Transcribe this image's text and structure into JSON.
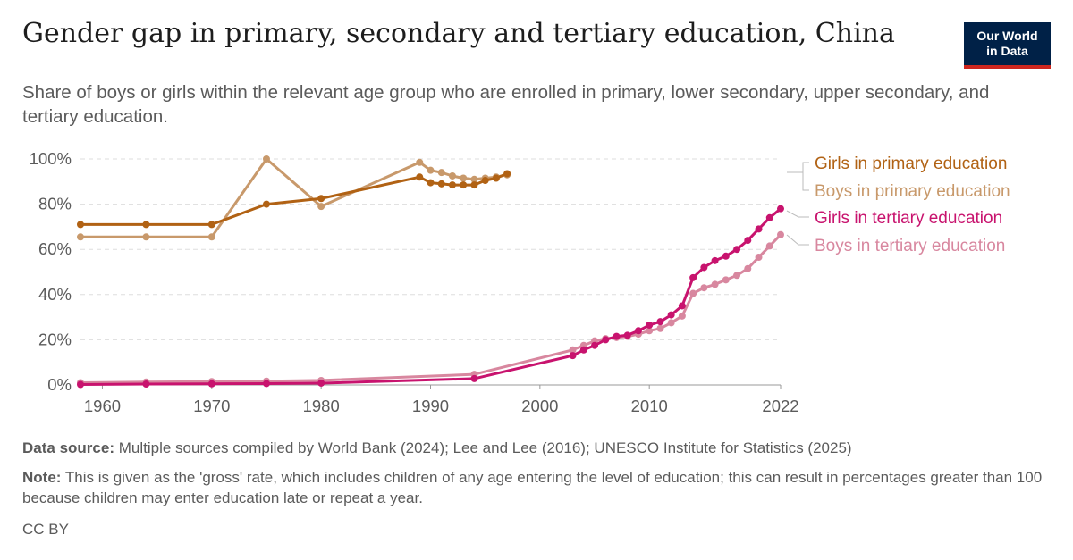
{
  "header": {
    "title": "Gender gap in primary, secondary and tertiary education, China",
    "subtitle": "Share of boys or girls within the relevant age group who are enrolled in primary, lower secondary, upper secondary, and tertiary education.",
    "logo_line1": "Our World",
    "logo_line2": "in Data"
  },
  "footer": {
    "source_label": "Data source:",
    "source_text": "Multiple sources compiled by World Bank (2024); Lee and Lee (2016); UNESCO Institute for Statistics (2025)",
    "note_label": "Note:",
    "note_text": "This is given as the 'gross' rate, which includes children of any age entering the level of education; this can result in percentages greater than 100 because children may enter education late or repeat a year.",
    "license": "CC BY"
  },
  "colors": {
    "girls_primary": "#b16214",
    "boys_primary": "#c8996b",
    "girls_tertiary": "#c8136e",
    "boys_tertiary": "#d8879f",
    "grid": "#dddddd",
    "axis_text": "#5b5b5b"
  },
  "chart_data": {
    "type": "line",
    "title": "Gender gap in primary, secondary and tertiary education, China",
    "xlim": [
      1958,
      2022
    ],
    "ylim": [
      0,
      100
    ],
    "x_ticks": [
      1960,
      1970,
      1980,
      1990,
      2000,
      2010,
      2022
    ],
    "x_tick_labels": [
      "1960",
      "1970",
      "1980",
      "1990",
      "2000",
      "2010",
      "2022"
    ],
    "y_ticks": [
      0,
      20,
      40,
      60,
      80,
      100
    ],
    "y_tick_labels": [
      "0%",
      "20%",
      "40%",
      "60%",
      "80%",
      "100%"
    ],
    "grid": true,
    "legend_position": "right",
    "series": [
      {
        "name": "Boys in tertiary education",
        "color": "#d8879f",
        "points": [
          [
            1958,
            1.0
          ],
          [
            1964,
            1.3
          ],
          [
            1970,
            1.5
          ],
          [
            1975,
            1.7
          ],
          [
            1980,
            2.0
          ],
          [
            1994,
            4.7
          ],
          [
            2003,
            15.5
          ],
          [
            2004,
            17.5
          ],
          [
            2005,
            19.5
          ],
          [
            2006,
            20.5
          ],
          [
            2007,
            21.0
          ],
          [
            2008,
            21.5
          ],
          [
            2009,
            22.5
          ],
          [
            2010,
            24.0
          ],
          [
            2011,
            25.0
          ],
          [
            2012,
            27.5
          ],
          [
            2013,
            30.5
          ],
          [
            2014,
            40.5
          ],
          [
            2015,
            43.0
          ],
          [
            2016,
            44.5
          ],
          [
            2017,
            46.5
          ],
          [
            2018,
            48.5
          ],
          [
            2019,
            51.5
          ],
          [
            2020,
            56.5
          ],
          [
            2021,
            61.5
          ],
          [
            2022,
            66.5
          ]
        ]
      },
      {
        "name": "Girls in tertiary education",
        "color": "#c8136e",
        "points": [
          [
            1958,
            0.2
          ],
          [
            1964,
            0.4
          ],
          [
            1970,
            0.5
          ],
          [
            1975,
            0.6
          ],
          [
            1980,
            0.8
          ],
          [
            1994,
            2.8
          ],
          [
            2003,
            13.0
          ],
          [
            2004,
            15.5
          ],
          [
            2005,
            17.5
          ],
          [
            2006,
            20.0
          ],
          [
            2007,
            21.5
          ],
          [
            2008,
            22.0
          ],
          [
            2009,
            24.0
          ],
          [
            2010,
            26.5
          ],
          [
            2011,
            28.0
          ],
          [
            2012,
            31.0
          ],
          [
            2013,
            35.0
          ],
          [
            2014,
            47.5
          ],
          [
            2015,
            52.0
          ],
          [
            2016,
            55.0
          ],
          [
            2017,
            57.0
          ],
          [
            2018,
            60.0
          ],
          [
            2019,
            64.0
          ],
          [
            2020,
            69.0
          ],
          [
            2021,
            74.0
          ],
          [
            2022,
            78.0
          ]
        ]
      },
      {
        "name": "Boys in primary education",
        "color": "#c8996b",
        "points": [
          [
            1958,
            65.5
          ],
          [
            1964,
            65.5
          ],
          [
            1970,
            65.5
          ],
          [
            1975,
            100.0
          ],
          [
            1980,
            79.0
          ],
          [
            1989,
            98.5
          ],
          [
            1990,
            95.0
          ],
          [
            1991,
            94.0
          ],
          [
            1992,
            92.5
          ],
          [
            1993,
            91.5
          ],
          [
            1994,
            91.0
          ],
          [
            1995,
            91.5
          ],
          [
            1996,
            92.0
          ],
          [
            1997,
            93.0
          ]
        ]
      },
      {
        "name": "Girls in primary education",
        "color": "#b16214",
        "points": [
          [
            1958,
            71.0
          ],
          [
            1964,
            71.0
          ],
          [
            1970,
            71.0
          ],
          [
            1975,
            80.0
          ],
          [
            1980,
            82.5
          ],
          [
            1989,
            92.0
          ],
          [
            1990,
            89.5
          ],
          [
            1991,
            89.0
          ],
          [
            1992,
            88.5
          ],
          [
            1993,
            88.5
          ],
          [
            1994,
            88.5
          ],
          [
            1995,
            90.5
          ],
          [
            1996,
            91.5
          ],
          [
            1997,
            93.5
          ]
        ]
      }
    ],
    "legend": [
      {
        "label": "Girls in primary education",
        "color": "#b16214"
      },
      {
        "label": "Boys in primary education",
        "color": "#c8996b"
      },
      {
        "label": "Girls in tertiary education",
        "color": "#c8136e"
      },
      {
        "label": "Boys in tertiary education",
        "color": "#d8879f"
      }
    ]
  }
}
